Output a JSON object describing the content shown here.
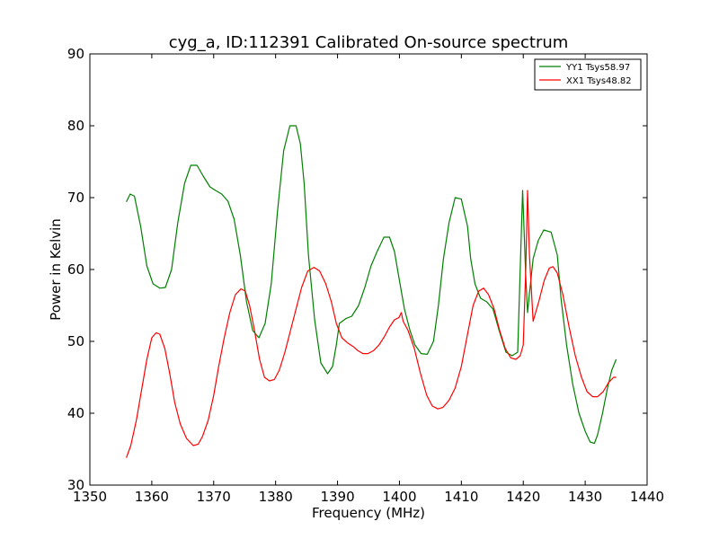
{
  "chart_data": {
    "type": "line",
    "title": "cyg_a, ID:112391 Calibrated On-source spectrum",
    "xlabel": "Frequency (MHz)",
    "ylabel": "Power in Kelvin",
    "xlim": [
      1350,
      1440
    ],
    "ylim": [
      30,
      90
    ],
    "xticks": [
      "1350",
      "1360",
      "1370",
      "1380",
      "1390",
      "1400",
      "1410",
      "1420",
      "1430",
      "1440"
    ],
    "yticks": [
      "30",
      "40",
      "50",
      "60",
      "70",
      "80",
      "90"
    ],
    "grid": false,
    "legend_position": "top-right",
    "series": [
      {
        "name": "YY1 Tsys58.97",
        "color": "#008000",
        "x": [
          1355.9,
          1356.5,
          1357.2,
          1358.2,
          1359.2,
          1360.2,
          1361.3,
          1362.2,
          1363.2,
          1364.2,
          1365.3,
          1366.3,
          1367.3,
          1368.3,
          1369.4,
          1370.3,
          1371.3,
          1372.3,
          1373.3,
          1374.3,
          1375.3,
          1376.3,
          1377.3,
          1378.3,
          1379.3,
          1380.3,
          1381.3,
          1382.3,
          1383.3,
          1384.0,
          1384.6,
          1385.3,
          1386.3,
          1387.3,
          1388.4,
          1389.2,
          1389.8,
          1390.3,
          1391.4,
          1392.3,
          1393.4,
          1394.4,
          1395.4,
          1396.4,
          1397.5,
          1398.4,
          1399.2,
          1400.0,
          1400.8,
          1401.7,
          1402.5,
          1403.5,
          1404.5,
          1405.5,
          1406.3,
          1407.1,
          1408.0,
          1409.0,
          1410.0,
          1411.0,
          1411.5,
          1412.2,
          1413.1,
          1414.1,
          1415.1,
          1416.1,
          1417.2,
          1418.2,
          1419.1,
          1419.9,
          1420.4,
          1420.7,
          1421.1,
          1421.6,
          1422.4,
          1423.3,
          1424.5,
          1425.5,
          1426.1,
          1427.0,
          1428.0,
          1429.0,
          1430.0,
          1430.8,
          1431.5,
          1432.0,
          1432.8,
          1433.6,
          1434.3,
          1435.0
        ],
        "values": [
          69.4,
          70.5,
          70.2,
          66.0,
          60.5,
          58.0,
          57.4,
          57.5,
          60.0,
          66.5,
          72.0,
          74.5,
          74.5,
          73.0,
          71.5,
          71.0,
          70.5,
          69.5,
          67.0,
          62.0,
          55.5,
          51.5,
          50.5,
          52.5,
          58.0,
          68.0,
          76.5,
          80.0,
          80.0,
          77.5,
          72.0,
          62.0,
          53.0,
          47.0,
          45.5,
          46.5,
          49.5,
          52.5,
          53.2,
          53.5,
          55.0,
          57.5,
          60.5,
          62.5,
          64.5,
          64.5,
          62.5,
          58.5,
          54.5,
          51.5,
          49.5,
          48.3,
          48.2,
          50.0,
          55.0,
          61.5,
          66.5,
          70.0,
          69.8,
          66.0,
          61.5,
          58.0,
          56.0,
          55.5,
          54.5,
          51.5,
          48.5,
          48.0,
          48.5,
          71.0,
          59.0,
          54.0,
          57.5,
          61.5,
          64.0,
          65.5,
          65.2,
          62.0,
          56.0,
          49.5,
          44.0,
          40.0,
          37.5,
          36.0,
          35.8,
          37.0,
          40.0,
          43.5,
          46.0,
          47.5
        ]
      },
      {
        "name": "XX1 Tsys48.82",
        "color": "#ff0000",
        "x": [
          1355.9,
          1356.6,
          1357.5,
          1358.4,
          1359.2,
          1360.0,
          1360.7,
          1361.3,
          1362.1,
          1362.9,
          1363.7,
          1364.6,
          1365.6,
          1366.7,
          1367.5,
          1368.2,
          1369.1,
          1370.0,
          1370.8,
          1371.7,
          1372.6,
          1373.5,
          1374.4,
          1375.1,
          1375.8,
          1376.6,
          1377.4,
          1378.2,
          1379.0,
          1379.8,
          1380.6,
          1381.5,
          1382.4,
          1383.3,
          1384.2,
          1385.2,
          1386.2,
          1387.1,
          1388.1,
          1389.0,
          1389.8,
          1390.7,
          1391.6,
          1392.5,
          1393.3,
          1394.1,
          1394.9,
          1395.8,
          1396.7,
          1397.6,
          1398.4,
          1399.2,
          1399.9,
          1400.3,
          1400.6,
          1401.4,
          1402.4,
          1403.4,
          1404.4,
          1405.3,
          1406.2,
          1407.0,
          1408.0,
          1409.0,
          1410.0,
          1411.0,
          1411.9,
          1412.8,
          1413.6,
          1414.4,
          1415.3,
          1416.2,
          1417.1,
          1418.0,
          1418.8,
          1419.5,
          1420.0,
          1420.4,
          1420.7,
          1421.0,
          1421.6,
          1422.5,
          1423.4,
          1424.2,
          1424.8,
          1425.5,
          1426.4,
          1427.4,
          1428.4,
          1429.4,
          1430.3,
          1431.2,
          1432.0,
          1432.9,
          1433.8,
          1434.6,
          1435.0
        ],
        "values": [
          33.8,
          35.5,
          39.0,
          43.5,
          47.5,
          50.5,
          51.2,
          51.0,
          49.0,
          45.5,
          41.5,
          38.5,
          36.5,
          35.5,
          35.7,
          36.8,
          39.0,
          42.5,
          46.5,
          50.5,
          54.0,
          56.5,
          57.3,
          57.0,
          55.0,
          51.5,
          47.5,
          45.0,
          44.5,
          44.7,
          46.0,
          48.5,
          51.5,
          54.5,
          57.5,
          59.8,
          60.3,
          59.8,
          58.0,
          55.5,
          52.5,
          50.5,
          49.8,
          49.3,
          48.7,
          48.3,
          48.3,
          48.7,
          49.5,
          50.7,
          52.0,
          53.0,
          53.3,
          54.0,
          52.8,
          51.5,
          49.0,
          45.5,
          42.5,
          41.0,
          40.6,
          40.8,
          41.8,
          43.5,
          46.5,
          51.0,
          55.0,
          57.0,
          57.4,
          56.5,
          54.5,
          51.5,
          49.0,
          47.7,
          47.5,
          48.0,
          49.5,
          60.0,
          71.0,
          62.0,
          52.8,
          55.5,
          58.5,
          60.2,
          60.4,
          59.5,
          56.5,
          52.0,
          48.0,
          45.0,
          43.0,
          42.3,
          42.3,
          43.0,
          44.3,
          45.0,
          45.0
        ]
      }
    ]
  }
}
